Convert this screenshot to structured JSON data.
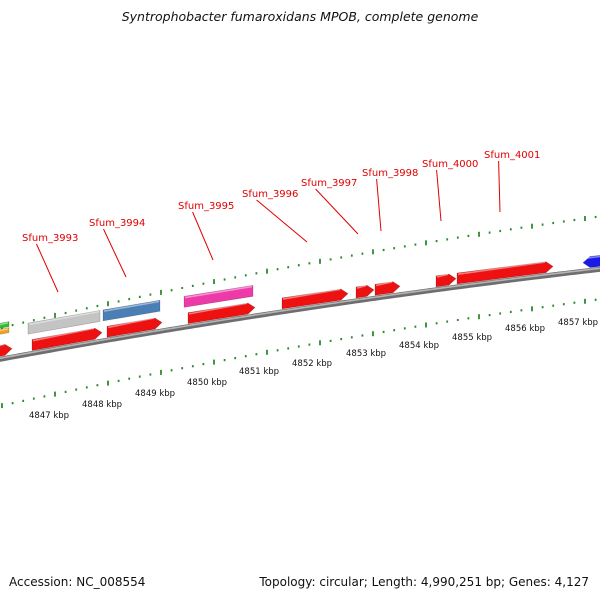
{
  "title": "Syntrophobacter fumaroxidans MPOB, complete genome",
  "accession": "Accession: NC_008554",
  "summary": "Topology: circular; Length: 4,990,251 bp; Genes: 4,127",
  "colors": {
    "backbone": "#8a8a8a",
    "tick": "#2d8a2d",
    "cds": "#ee1111",
    "gene_label": "#e00000",
    "gene_gray": "#c4c4c4",
    "gene_blue": "#4a7fb5",
    "gene_pink": "#ee3aa8",
    "gene_navy": "#1a1ae8"
  },
  "gene_labels": [
    "Sfum_3993",
    "Sfum_3994",
    "Sfum_3995",
    "Sfum_3996",
    "Sfum_3997",
    "Sfum_3998",
    "Sfum_4000",
    "Sfum_4001"
  ],
  "kbp_labels": [
    "4847 kbp",
    "4848 kbp",
    "4849 kbp",
    "4850 kbp",
    "4851 kbp",
    "4852 kbp",
    "4853 kbp",
    "4854 kbp",
    "4855 kbp",
    "4856 kbp",
    "4857 kbp"
  ]
}
